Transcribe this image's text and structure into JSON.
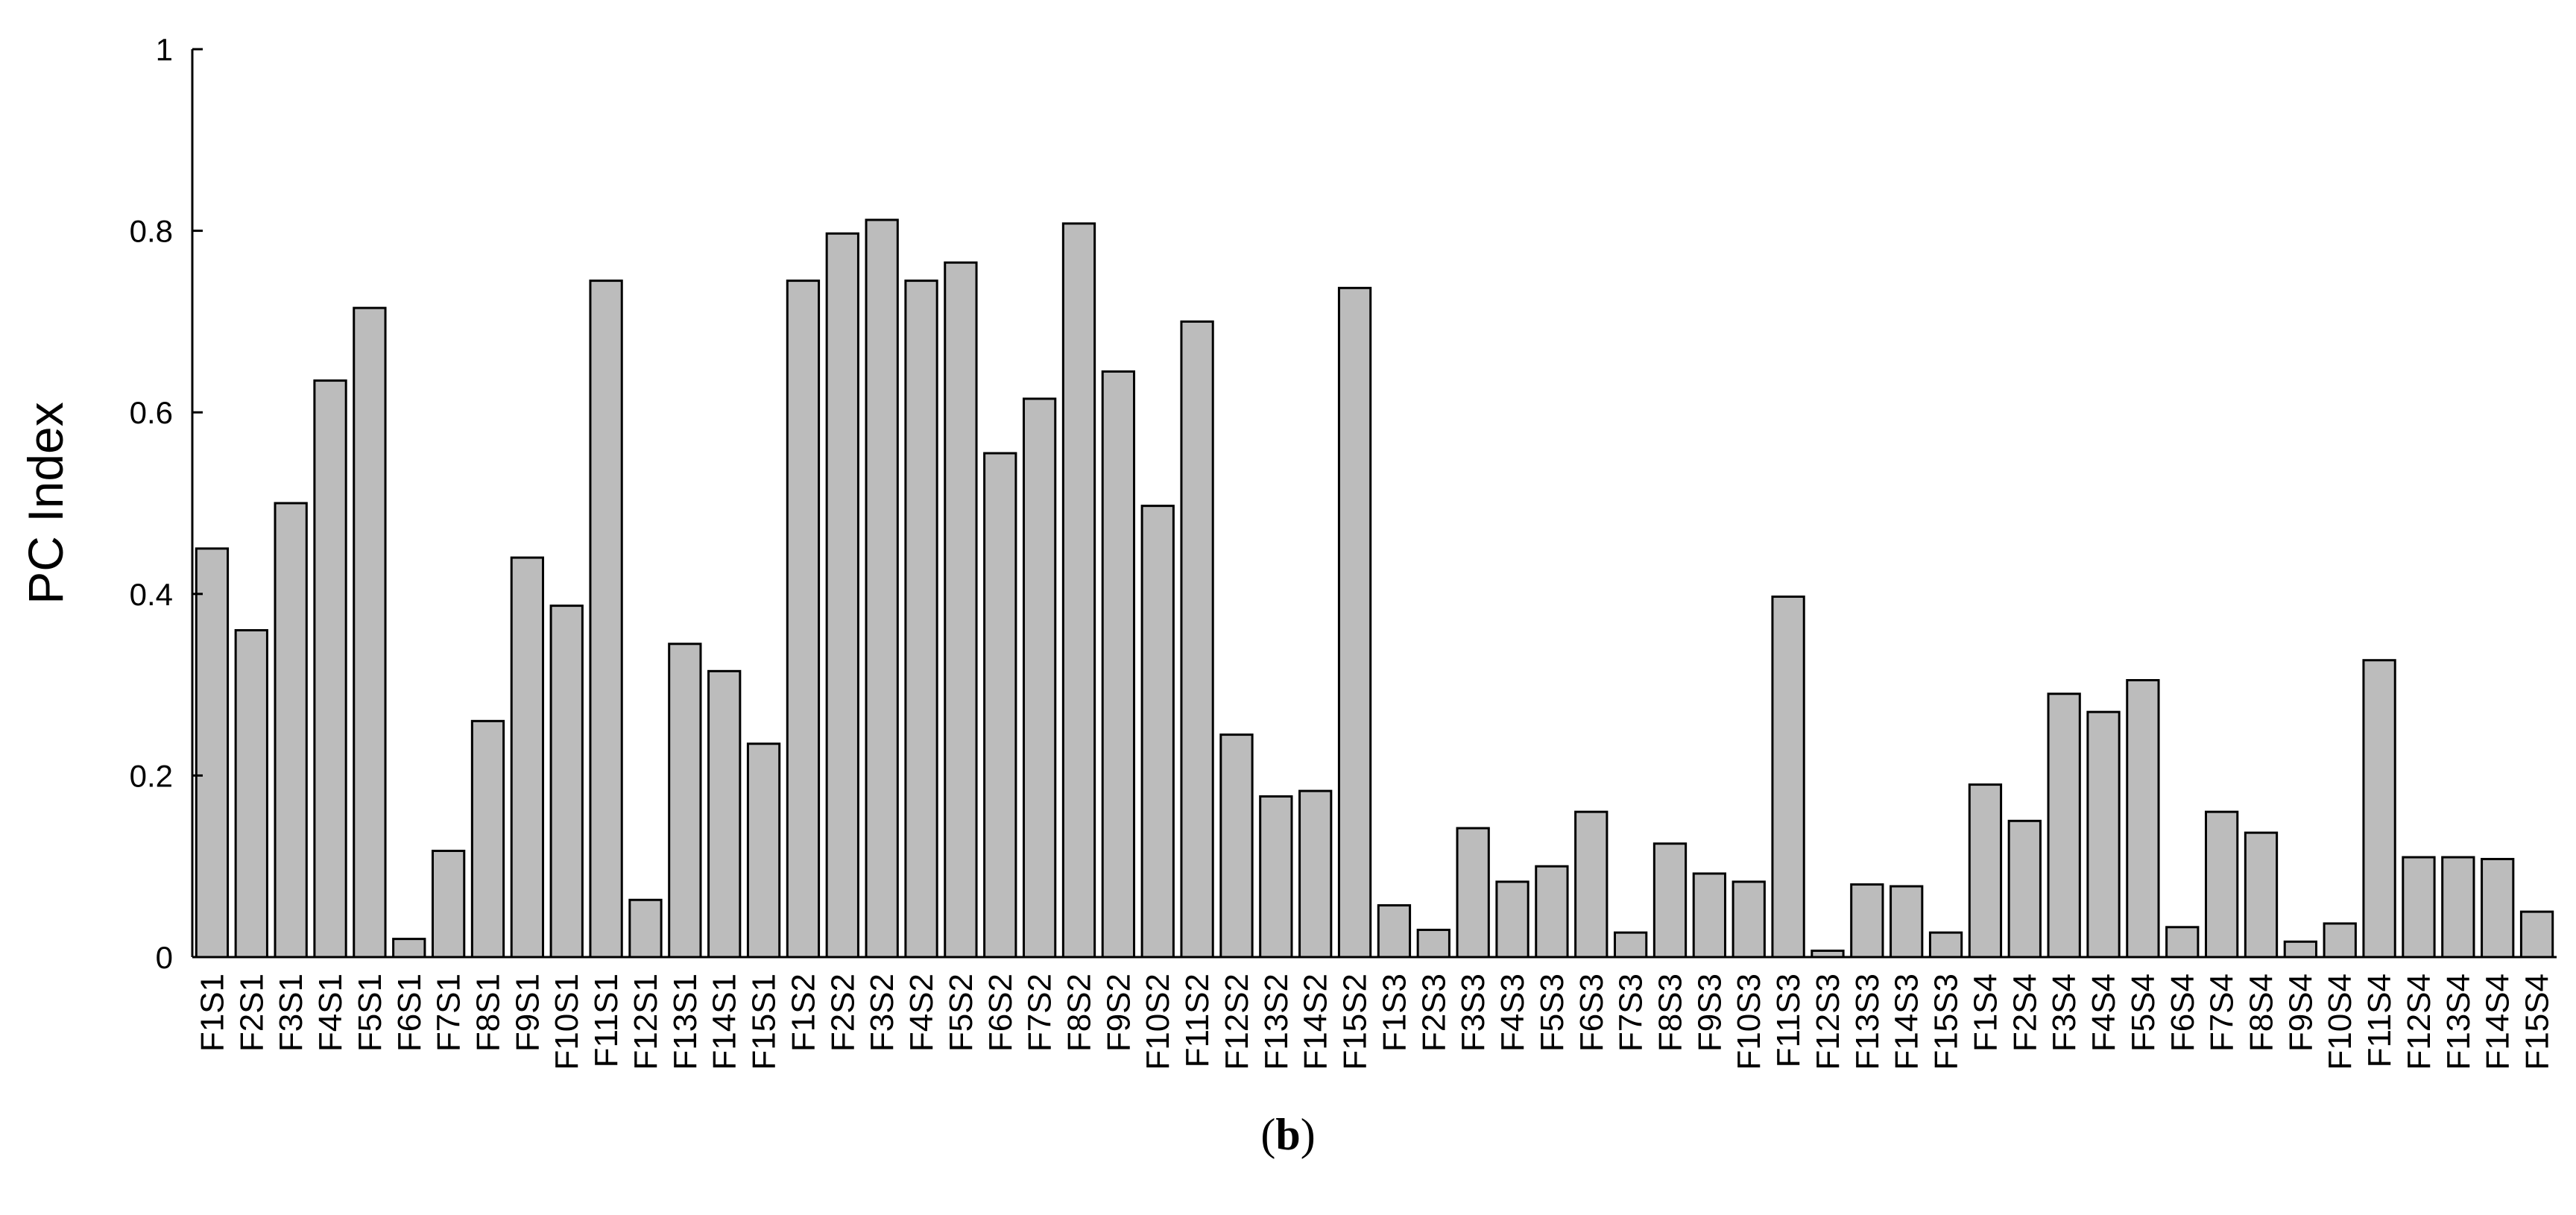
{
  "chart_data": {
    "type": "bar",
    "ylabel": "PC Index",
    "ylim": [
      0,
      1
    ],
    "yticks": [
      "0",
      "0.2",
      "0.4",
      "0.6",
      "0.8",
      "1"
    ],
    "grid": false,
    "bar_color": "#bcbcbc",
    "bar_edge_color": "#000000",
    "categories": [
      "F1S1",
      "F2S1",
      "F3S1",
      "F4S1",
      "F5S1",
      "F6S1",
      "F7S1",
      "F8S1",
      "F9S1",
      "F10S1",
      "F11S1",
      "F12S1",
      "F13S1",
      "F14S1",
      "F15S1",
      "F1S2",
      "F2S2",
      "F3S2",
      "F4S2",
      "F5S2",
      "F6S2",
      "F7S2",
      "F8S2",
      "F9S2",
      "F10S2",
      "F11S2",
      "F12S2",
      "F13S2",
      "F14S2",
      "F15S2",
      "F1S3",
      "F2S3",
      "F3S3",
      "F4S3",
      "F5S3",
      "F6S3",
      "F7S3",
      "F8S3",
      "F9S3",
      "F10S3",
      "F11S3",
      "F12S3",
      "F13S3",
      "F14S3",
      "F15S3",
      "F1S4",
      "F2S4",
      "F3S4",
      "F4S4",
      "F5S4",
      "F6S4",
      "F7S4",
      "F8S4",
      "F9S4",
      "F10S4",
      "F11S4",
      "F12S4",
      "F13S4",
      "F14S4",
      "F15S4"
    ],
    "values": [
      0.45,
      0.36,
      0.5,
      0.635,
      0.715,
      0.02,
      0.117,
      0.26,
      0.44,
      0.387,
      0.745,
      0.063,
      0.345,
      0.315,
      0.235,
      0.745,
      0.797,
      0.812,
      0.745,
      0.765,
      0.555,
      0.615,
      0.808,
      0.645,
      0.497,
      0.7,
      0.245,
      0.177,
      0.183,
      0.737,
      0.057,
      0.03,
      0.142,
      0.083,
      0.1,
      0.16,
      0.027,
      0.125,
      0.092,
      0.083,
      0.397,
      0.007,
      0.08,
      0.078,
      0.027,
      0.19,
      0.15,
      0.29,
      0.27,
      0.305,
      0.033,
      0.16,
      0.137,
      0.017,
      0.037,
      0.327,
      0.11,
      0.11,
      0.108,
      0.05
    ]
  },
  "caption": {
    "open": "(",
    "letter": "b",
    "close": ")"
  }
}
